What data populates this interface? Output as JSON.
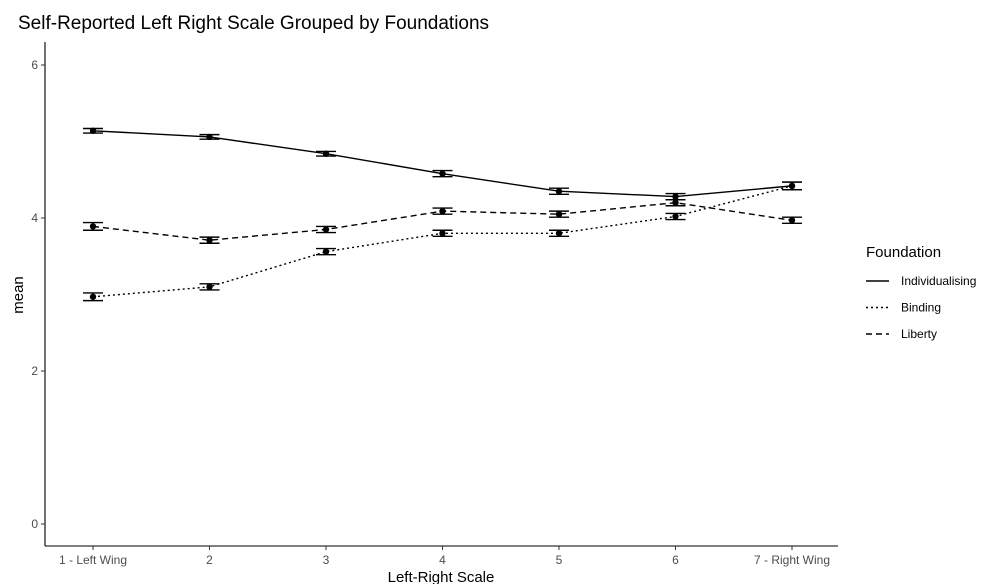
{
  "chart_data": {
    "type": "line",
    "title": "Self-Reported Left Right Scale Grouped by Foundations",
    "xlabel": "Left-Right Scale",
    "ylabel": "mean",
    "categories": [
      "1 - Left Wing",
      "2",
      "3",
      "4",
      "5",
      "6",
      "7 - Right Wing"
    ],
    "ylim": [
      0,
      6
    ],
    "yticks": [
      0,
      2,
      4,
      6
    ],
    "grid": false,
    "legend": {
      "title": "Foundation",
      "placement": "right"
    },
    "series": [
      {
        "name": "Individualising",
        "dash": "solid",
        "values": [
          5.14,
          5.06,
          4.84,
          4.58,
          4.35,
          4.28,
          4.42
        ],
        "error": [
          0.03,
          0.03,
          0.03,
          0.04,
          0.04,
          0.04,
          0.05
        ]
      },
      {
        "name": "Binding",
        "dash": "dotted",
        "values": [
          2.97,
          3.1,
          3.56,
          3.8,
          3.8,
          4.02,
          4.42
        ],
        "error": [
          0.05,
          0.04,
          0.04,
          0.04,
          0.04,
          0.04,
          0.05
        ]
      },
      {
        "name": "Liberty",
        "dash": "dashed",
        "values": [
          3.89,
          3.71,
          3.85,
          4.09,
          4.05,
          4.2,
          3.97
        ],
        "error": [
          0.05,
          0.04,
          0.04,
          0.04,
          0.04,
          0.04,
          0.04
        ]
      }
    ],
    "colors": {
      "line": "#000000",
      "axis": "#000000",
      "tick_text": "#4d4d4d"
    }
  }
}
